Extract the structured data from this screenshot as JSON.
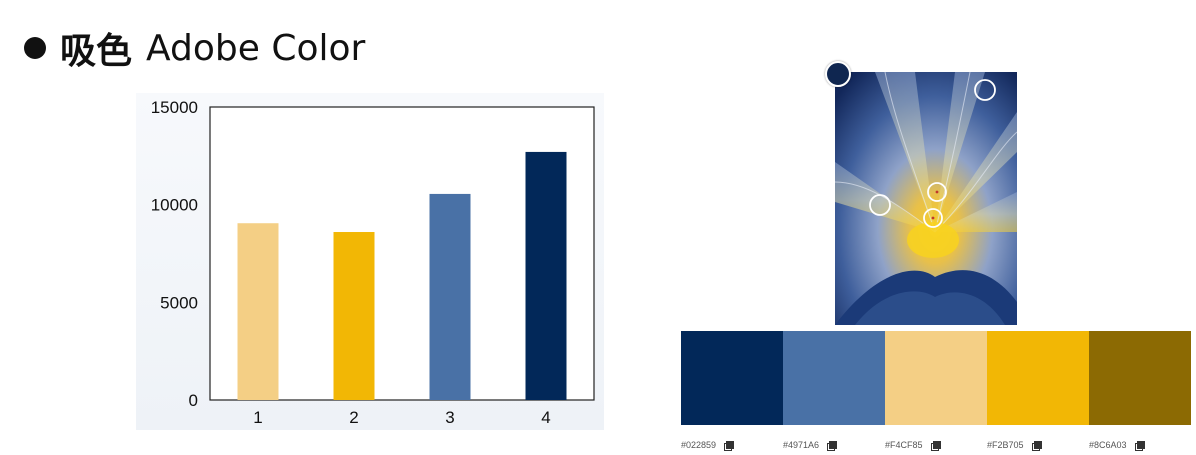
{
  "slide": {
    "title_bold": "吸色",
    "title_rest": "Adobe Color"
  },
  "chart_data": {
    "type": "bar",
    "categories": [
      "1",
      "2",
      "3",
      "4"
    ],
    "values": [
      9050,
      8600,
      10550,
      12700
    ],
    "colors": [
      "#F4CF85",
      "#F2B705",
      "#4971A6",
      "#022859"
    ],
    "ylim": [
      0,
      15000
    ],
    "yticks": [
      0,
      5000,
      10000,
      15000
    ],
    "title": "",
    "xlabel": "",
    "ylabel": "",
    "grid": false
  },
  "picker": {
    "image_subject": "blue and yellow flower close-up",
    "handle_color": "#0f2650"
  },
  "palette": [
    {
      "hex": "#022859",
      "label": "#022859"
    },
    {
      "hex": "#4971A6",
      "label": "#4971A6"
    },
    {
      "hex": "#F4CF85",
      "label": "#F4CF85"
    },
    {
      "hex": "#F2B705",
      "label": "#F2B705"
    },
    {
      "hex": "#8C6A03",
      "label": "#8C6A03"
    }
  ],
  "icons": {
    "copy": "copy-icon"
  }
}
